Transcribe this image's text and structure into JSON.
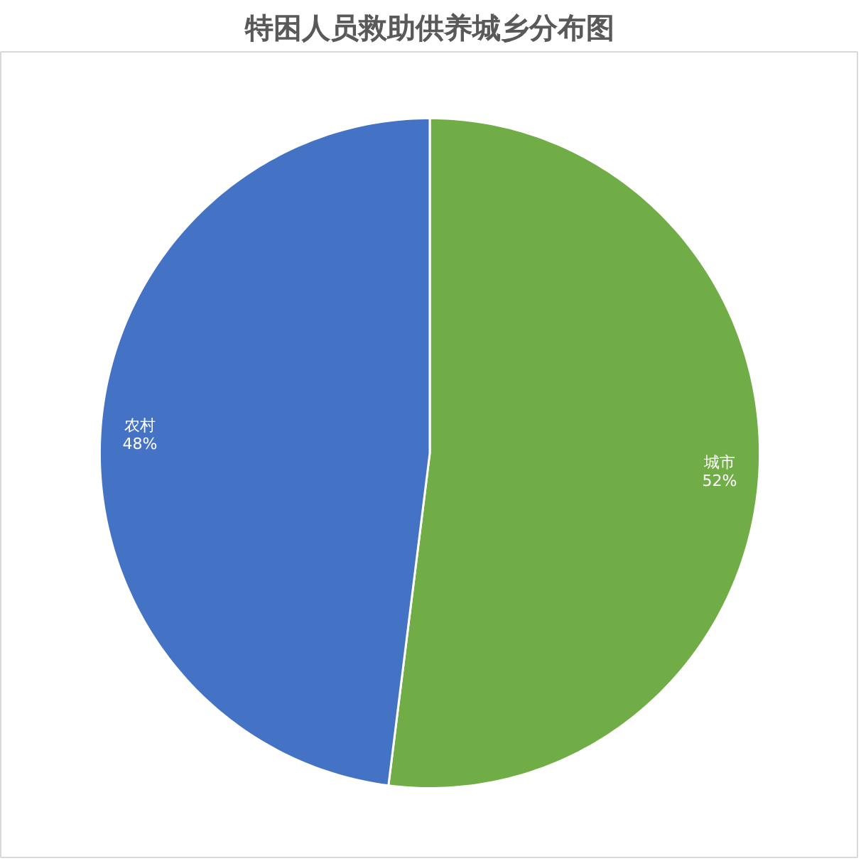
{
  "chart_data": {
    "type": "pie",
    "title": "特困人员救助供养城乡分布图",
    "categories": [
      "城市",
      "农村"
    ],
    "values": [
      52,
      48
    ],
    "colors": [
      "#70ad47",
      "#4472c4"
    ],
    "value_labels": [
      "52%",
      "48%"
    ]
  }
}
